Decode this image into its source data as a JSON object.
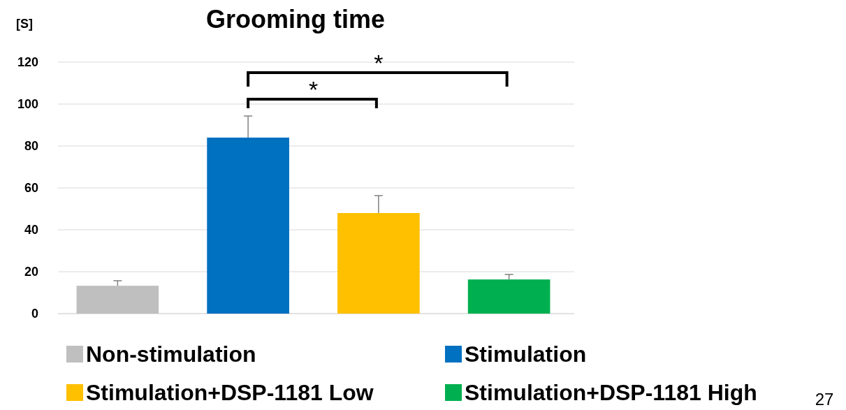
{
  "chart_data": {
    "type": "bar",
    "title": "Grooming time",
    "ylabel": "[S]",
    "categories": [
      null,
      null,
      null,
      null
    ],
    "series": [
      {
        "name": "Non-stimulation",
        "color": "#bfbfbf",
        "values": [
          13.3,
          null,
          null,
          null
        ],
        "errors": [
          [
            13.3,
            15.7
          ],
          null,
          null,
          null
        ]
      },
      {
        "name": "Stimulation",
        "color": "#0070c0",
        "values": [
          null,
          84,
          null,
          null
        ],
        "errors": [
          null,
          [
            84,
            94.3
          ],
          null,
          null
        ]
      },
      {
        "name": "Stimulation+DSP-1181 Low",
        "color": "#ffc000",
        "values": [
          null,
          null,
          48,
          null
        ],
        "errors": [
          null,
          null,
          [
            48,
            56.3
          ],
          null
        ]
      },
      {
        "name": "Stimulation+DSP-1181 High",
        "color": "#00b050",
        "values": [
          null,
          null,
          null,
          16.3
        ],
        "errors": [
          null,
          null,
          null,
          [
            16.3,
            18.7
          ]
        ]
      }
    ],
    "ylim": [
      0,
      120
    ],
    "yticks": [
      0,
      20,
      40,
      60,
      80,
      100,
      120
    ],
    "grid": "y",
    "legend": "bottom",
    "annotations": [
      "*",
      "*",
      "27"
    ]
  }
}
